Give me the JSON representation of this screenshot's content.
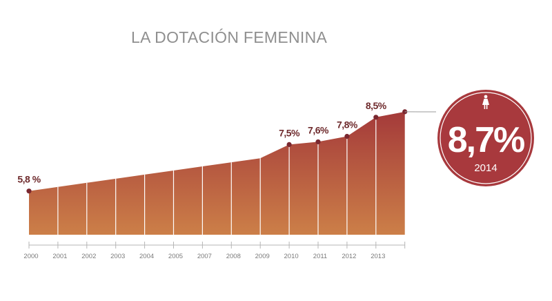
{
  "chart_data": {
    "type": "area",
    "title": "LA DOTACIÓN FEMENINA",
    "x": [
      "2000",
      "2001",
      "2002",
      "2003",
      "2004",
      "2005",
      "2007",
      "2008",
      "2009",
      "2010",
      "2011",
      "2012",
      "2013",
      "2014"
    ],
    "values": [
      5.8,
      5.95,
      6.1,
      6.25,
      6.4,
      6.55,
      6.7,
      6.85,
      7.0,
      7.5,
      7.6,
      7.8,
      8.5,
      8.7
    ],
    "point_labels": [
      {
        "index": 0,
        "text": "5,8 %"
      },
      {
        "index": 9,
        "text": "7,5%"
      },
      {
        "index": 10,
        "text": "7,6%"
      },
      {
        "index": 11,
        "text": "7,8%"
      },
      {
        "index": 12,
        "text": "8,5%"
      }
    ],
    "tick_labels": [
      "2000",
      "2001",
      "2002",
      "2003",
      "2004",
      "2005",
      "2007",
      "2008",
      "2009",
      "2010",
      "2011",
      "2012",
      "2013"
    ],
    "ylim": [
      4.2,
      9.0
    ],
    "grid": false,
    "colors": {
      "top": "#a43a3a",
      "bottom": "#cc7f48",
      "line": "#ffffff",
      "dot": "#7a2830",
      "axis": "#b5b5b5"
    },
    "highlight": {
      "value": "8,7%",
      "year": "2014",
      "icon": "woman-icon",
      "color": "#a8393d"
    }
  }
}
